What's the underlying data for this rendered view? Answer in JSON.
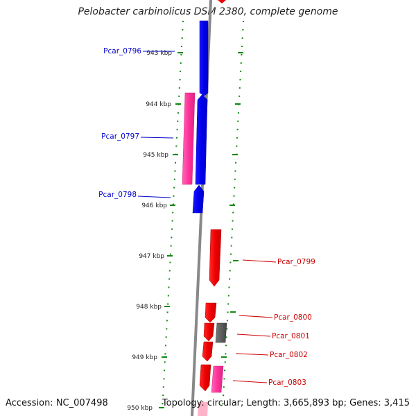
{
  "header": {
    "title": "Pelobacter carbinolicus DSM 2380, complete genome"
  },
  "footer": {
    "accession": "Accession: NC_007498",
    "topology": "Topology: circular; Length: 3,665,893 bp; Genes: 3,415"
  },
  "colors": {
    "forward_strand": "#ee0000",
    "reverse_strand": "#0000ee",
    "pink_feature": "#ff3399",
    "gray_feature": "#555555",
    "tick_dots": "#118811",
    "backbone": "#888888"
  },
  "ticks": [
    "943 kbp",
    "944 kbp",
    "945 kbp",
    "946 kbp",
    "947 kbp",
    "948 kbp",
    "949 kbp",
    "950 kbp"
  ],
  "genes": [
    {
      "name": "Pcar_0796",
      "strand": "reverse",
      "color": "#0000cc"
    },
    {
      "name": "Pcar_0797",
      "strand": "reverse",
      "color": "#0000cc"
    },
    {
      "name": "Pcar_0798",
      "strand": "reverse",
      "color": "#0000cc"
    },
    {
      "name": "Pcar_0799",
      "strand": "forward",
      "color": "#cc0000"
    },
    {
      "name": "Pcar_0800",
      "strand": "forward",
      "color": "#cc0000"
    },
    {
      "name": "Pcar_0801",
      "strand": "forward",
      "color": "#cc0000"
    },
    {
      "name": "Pcar_0802",
      "strand": "forward",
      "color": "#cc0000"
    },
    {
      "name": "Pcar_0803",
      "strand": "forward",
      "color": "#cc0000"
    }
  ]
}
